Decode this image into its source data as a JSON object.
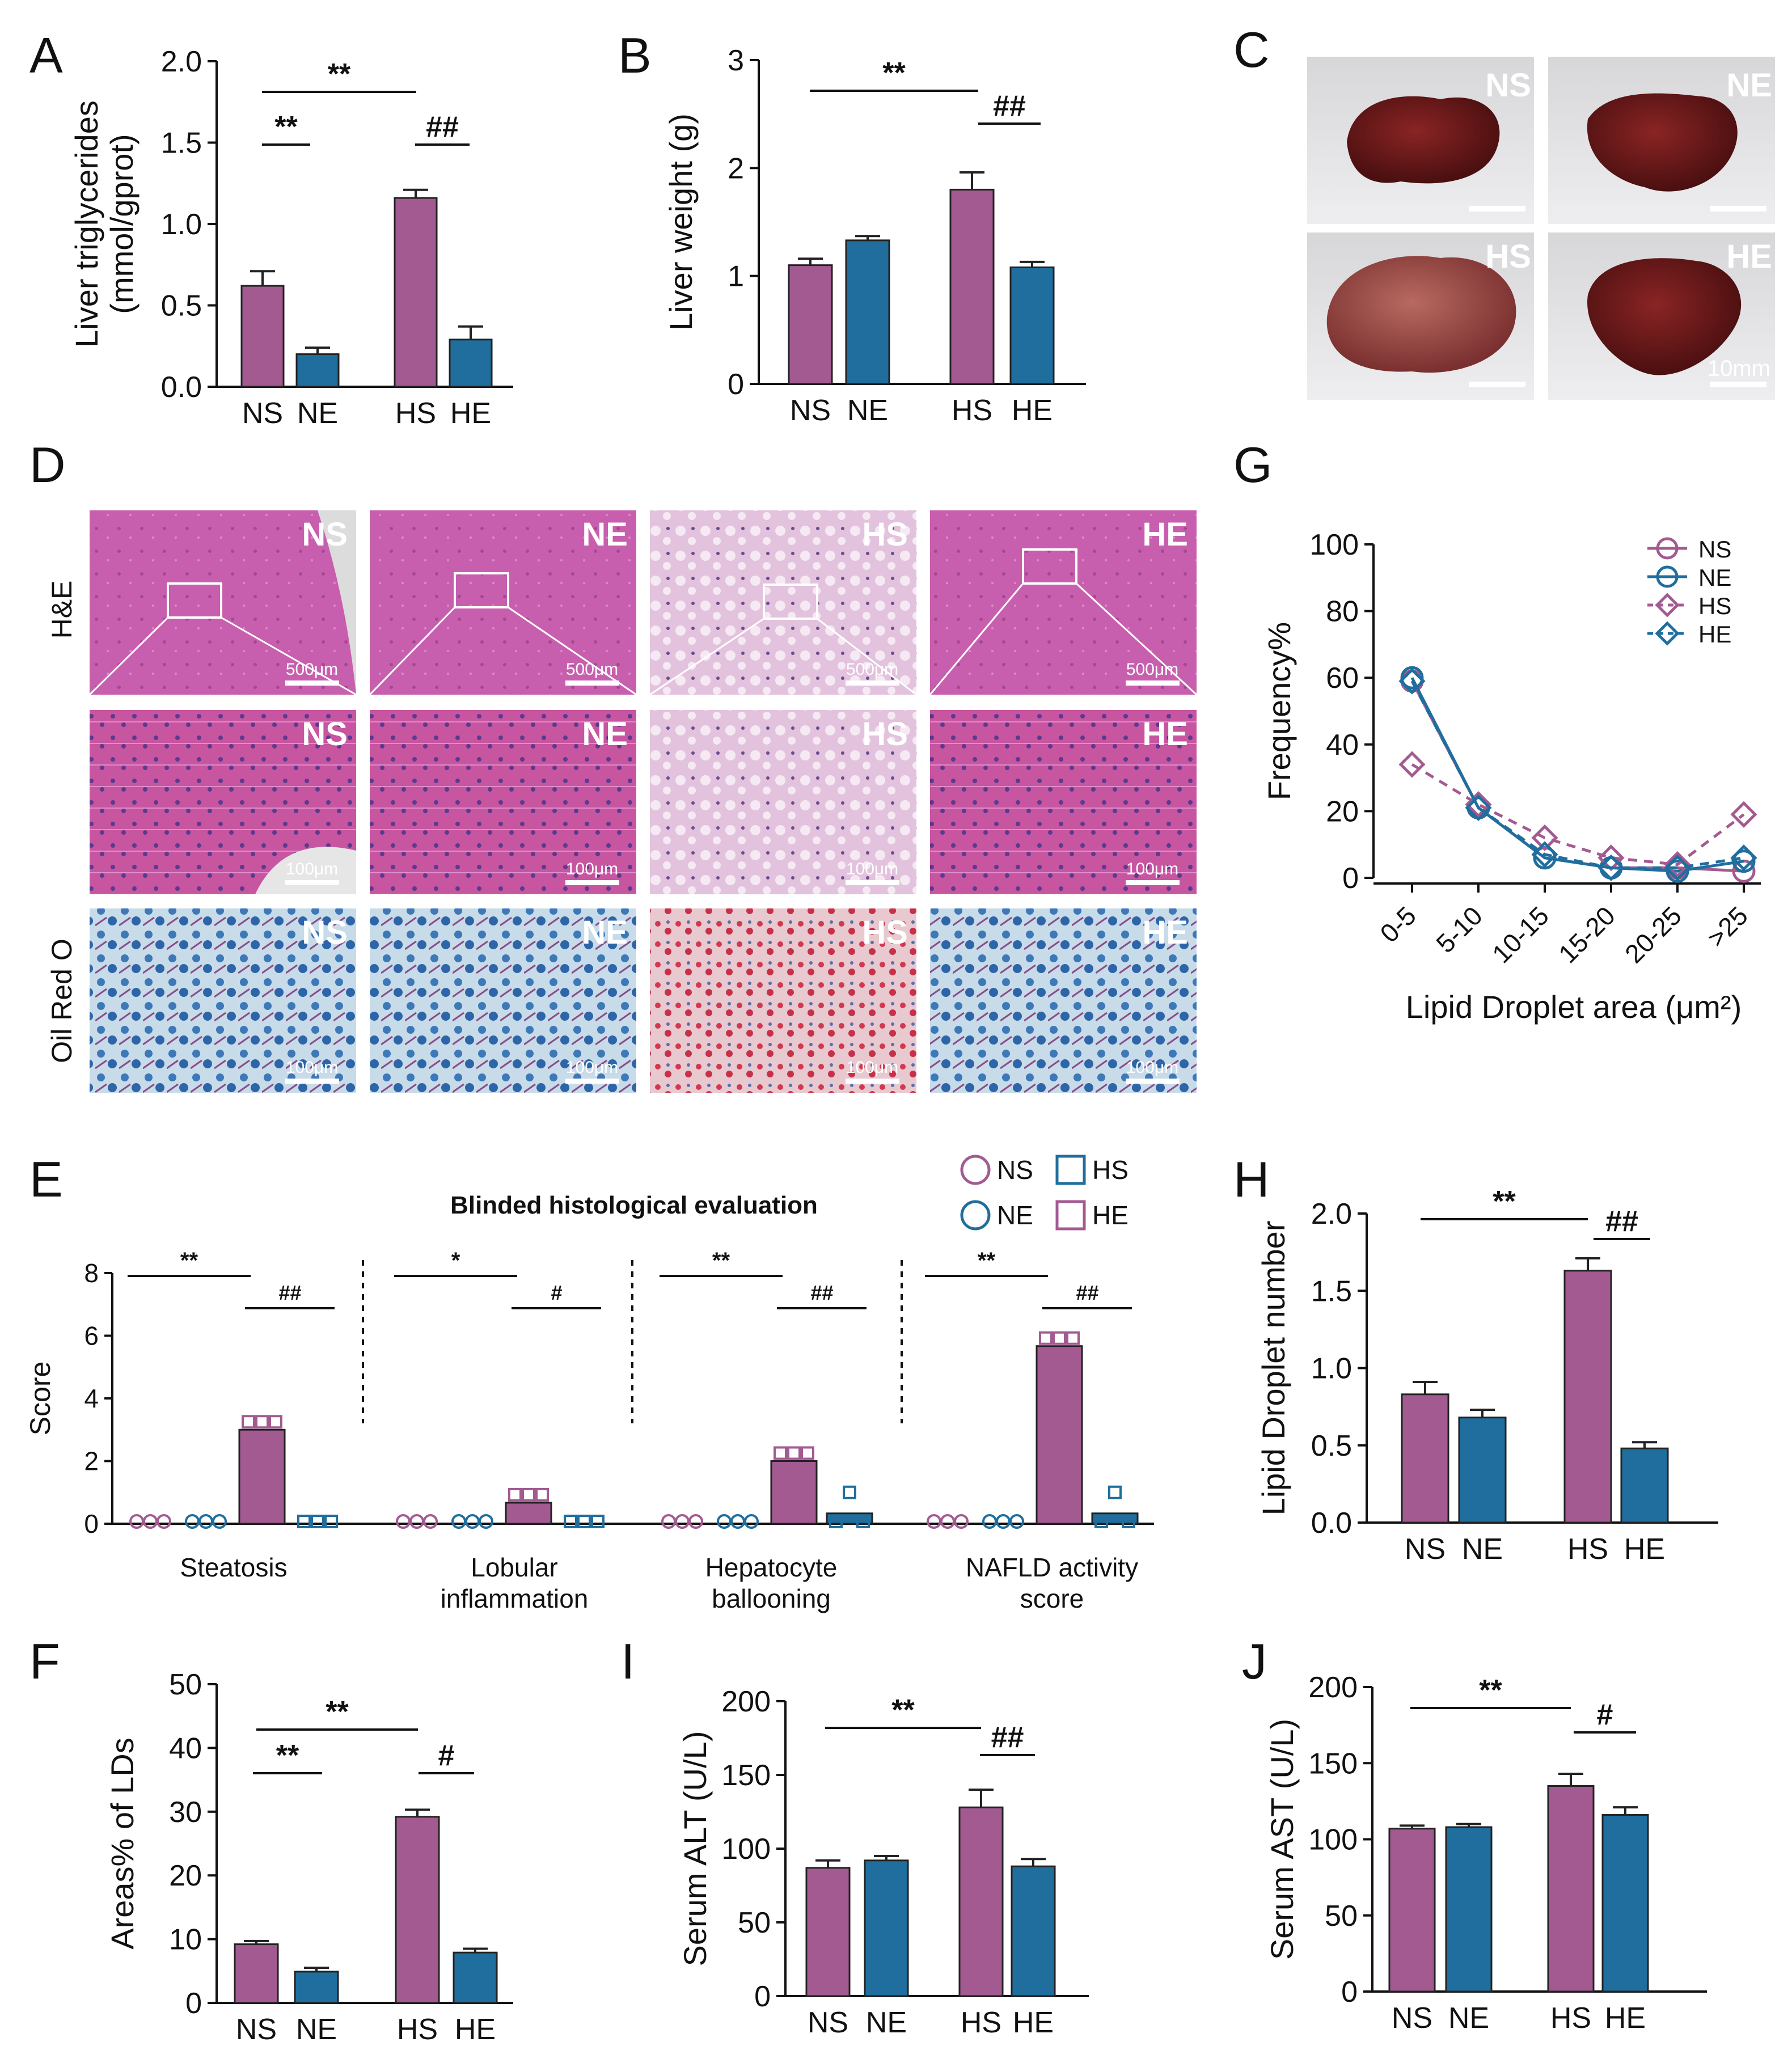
{
  "colors": {
    "purple": "#a35a91",
    "blue": "#1f6e9e",
    "dark": "#111111"
  },
  "panels": {
    "A": "A",
    "B": "B",
    "C": "C",
    "D": "D",
    "E": "E",
    "F": "F",
    "G": "G",
    "H": "H",
    "I": "I",
    "J": "J"
  },
  "liver_photos": {
    "labels": [
      "NS",
      "NE",
      "HS",
      "HE"
    ],
    "scale": "10mm"
  },
  "histology": {
    "rows": [
      "H&E",
      "",
      "Oil Red O"
    ],
    "groups": [
      "NS",
      "NE",
      "HS",
      "HE"
    ],
    "scales": [
      "500μm",
      "100μm",
      "100μm"
    ]
  },
  "chart_data": [
    {
      "id": "A",
      "type": "bar",
      "ylabel": "Liver triglycerides (mmol/gprot)",
      "categories": [
        "NS",
        "NE",
        "HS",
        "HE"
      ],
      "values": [
        0.62,
        0.2,
        1.16,
        0.29
      ],
      "errors": [
        0.09,
        0.04,
        0.05,
        0.08
      ],
      "ylim": [
        0,
        2.0
      ],
      "yticks": [
        "0.0",
        "0.5",
        "1.0",
        "1.5",
        "2.0"
      ],
      "sig": [
        "**",
        "**",
        "##"
      ]
    },
    {
      "id": "B",
      "type": "bar",
      "ylabel": "Liver weight (g)",
      "categories": [
        "NS",
        "NE",
        "HS",
        "HE"
      ],
      "values": [
        1.1,
        1.33,
        1.8,
        1.08
      ],
      "errors": [
        0.06,
        0.04,
        0.16,
        0.05
      ],
      "ylim": [
        0,
        3
      ],
      "yticks": [
        "0",
        "1",
        "2",
        "3"
      ],
      "sig": [
        "**",
        "##"
      ]
    },
    {
      "id": "E",
      "type": "bar",
      "title": "Blinded histological evaluation",
      "ylabel": "Score",
      "groups": [
        "Steatosis",
        "Lobular inflammation",
        "Hepatocyte ballooning",
        "NAFLD activity score"
      ],
      "series": [
        {
          "name": "NS",
          "values": [
            0,
            0,
            0,
            0
          ]
        },
        {
          "name": "NE",
          "values": [
            0,
            0,
            0,
            0
          ]
        },
        {
          "name": "HS",
          "values": [
            3.0,
            0.67,
            2.0,
            5.67
          ]
        },
        {
          "name": "HE",
          "values": [
            0,
            0,
            0.33,
            0.33
          ]
        }
      ],
      "ylim": [
        0,
        8
      ],
      "yticks": [
        "0",
        "2",
        "4",
        "6",
        "8"
      ],
      "legend": [
        "NS",
        "NE",
        "HS",
        "HE"
      ],
      "sig": [
        [
          "**",
          "##"
        ],
        [
          "*",
          "#"
        ],
        [
          "**",
          "##"
        ],
        [
          "**",
          "##"
        ]
      ]
    },
    {
      "id": "F",
      "type": "bar",
      "ylabel": "Areas% of LDs",
      "categories": [
        "NS",
        "NE",
        "HS",
        "HE"
      ],
      "values": [
        9.2,
        4.9,
        29.2,
        7.9
      ],
      "errors": [
        0.5,
        0.6,
        1.1,
        0.6
      ],
      "ylim": [
        0,
        50
      ],
      "yticks": [
        "0",
        "10",
        "20",
        "30",
        "40",
        "50"
      ],
      "sig": [
        "**",
        "**",
        "#"
      ]
    },
    {
      "id": "G",
      "type": "line",
      "xlabel": "Lipid Droplet area (μm²)",
      "ylabel": "Frequency%",
      "x": [
        "0-5",
        "5-10",
        "10-15",
        "15-20",
        "20-25",
        ">25"
      ],
      "series": [
        {
          "name": "NS",
          "values": [
            59,
            21,
            6,
            3,
            3,
            2
          ]
        },
        {
          "name": "NE",
          "values": [
            60,
            21,
            6,
            3,
            2,
            5
          ]
        },
        {
          "name": "HS",
          "values": [
            34,
            22,
            12,
            6,
            4,
            19
          ]
        },
        {
          "name": "HE",
          "values": [
            59,
            21,
            7,
            3,
            3,
            6
          ]
        }
      ],
      "ylim": [
        0,
        100
      ],
      "yticks": [
        "0",
        "20",
        "40",
        "60",
        "80",
        "100"
      ]
    },
    {
      "id": "H",
      "type": "bar",
      "ylabel": "Lipid Droplet number",
      "categories": [
        "NS",
        "NE",
        "HS",
        "HE"
      ],
      "values": [
        0.83,
        0.68,
        1.63,
        0.48
      ],
      "errors": [
        0.08,
        0.05,
        0.08,
        0.04
      ],
      "ylim": [
        0,
        2.0
      ],
      "yticks": [
        "0.0",
        "0.5",
        "1.0",
        "1.5",
        "2.0"
      ],
      "sig": [
        "**",
        "##"
      ]
    },
    {
      "id": "I",
      "type": "bar",
      "ylabel": "Serum ALT (U/L)",
      "categories": [
        "NS",
        "NE",
        "HS",
        "HE"
      ],
      "values": [
        87,
        92,
        128,
        88
      ],
      "errors": [
        5,
        3,
        12,
        5
      ],
      "ylim": [
        0,
        200
      ],
      "yticks": [
        "0",
        "50",
        "100",
        "150",
        "200"
      ],
      "sig": [
        "**",
        "##"
      ]
    },
    {
      "id": "J",
      "type": "bar",
      "ylabel": "Serum AST (U/L)",
      "categories": [
        "NS",
        "NE",
        "HS",
        "HE"
      ],
      "values": [
        107,
        108,
        135,
        116
      ],
      "errors": [
        2,
        2,
        8,
        5
      ],
      "ylim": [
        0,
        200
      ],
      "yticks": [
        "0",
        "50",
        "100",
        "150",
        "200"
      ],
      "sig": [
        "**",
        "#"
      ]
    }
  ]
}
